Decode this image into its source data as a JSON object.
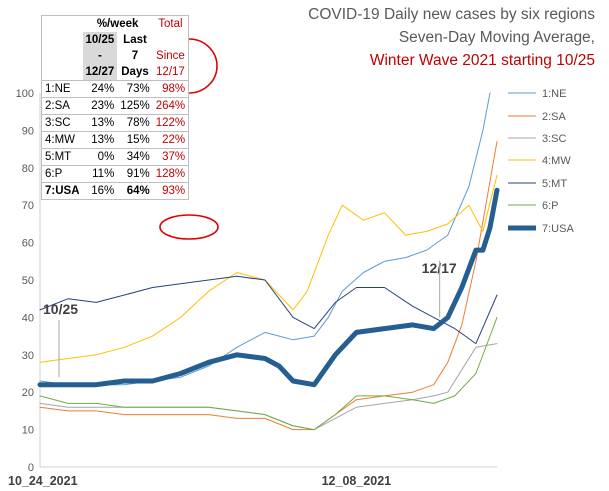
{
  "title": {
    "line1": "COVID-19 Daily new cases by six regions",
    "line2": "Seven-Day Moving Average,",
    "line3": "Winter Wave 2021 starting 10/25"
  },
  "table": {
    "header_pct_week": "%/week",
    "header_total": "Total",
    "col1_lines": [
      "10/25",
      "-",
      "12/27"
    ],
    "col2_lines": [
      "Last",
      "7",
      "Days"
    ],
    "col3_lines": [
      "Since",
      "12/17"
    ],
    "rows": [
      {
        "label": "1:NE",
        "c1": "24%",
        "c2": "73%",
        "c3": "98%"
      },
      {
        "label": "2:SA",
        "c1": "23%",
        "c2": "125%",
        "c3": "264%"
      },
      {
        "label": "3:SC",
        "c1": "13%",
        "c2": "78%",
        "c3": "122%"
      },
      {
        "label": "4:MW",
        "c1": "13%",
        "c2": "15%",
        "c3": "22%"
      },
      {
        "label": "5:MT",
        "c1": "0%",
        "c2": "34%",
        "c3": "37%"
      },
      {
        "label": "6:P",
        "c1": "11%",
        "c2": "91%",
        "c3": "128%"
      },
      {
        "label": "7:USA",
        "c1": "16%",
        "c2": "64%",
        "c3": "93%"
      }
    ]
  },
  "chart_data": {
    "type": "line",
    "title": "COVID-19 Daily new cases by six regions Seven-Day Moving Average, Winter Wave 2021 starting 10/25",
    "ylim": [
      0,
      100
    ],
    "yticks": [
      "0",
      "10",
      "20",
      "30",
      "40",
      "50",
      "60",
      "70",
      "80",
      "90",
      "100"
    ],
    "xticks": [
      "10_24_2021",
      "12_08_2021"
    ],
    "x_start": "2021-10-24",
    "x_end": "2021-12-28",
    "x_tick_dates": [
      "2021-10-24",
      "2021-12-08"
    ],
    "grid": false,
    "legend_position": "right",
    "annotations": [
      {
        "text": "10/25",
        "date": "2021-10-25",
        "y": 42
      },
      {
        "text": "12/17",
        "date": "2021-12-17",
        "y": 53
      }
    ],
    "series": [
      {
        "name": "1:NE",
        "color": "#5b9bd5",
        "width": 1,
        "points": [
          [
            "2021-10-24",
            23
          ],
          [
            "2021-10-28",
            22
          ],
          [
            "2021-11-01",
            22
          ],
          [
            "2021-11-05",
            22
          ],
          [
            "2021-11-09",
            23
          ],
          [
            "2021-11-13",
            24
          ],
          [
            "2021-11-17",
            27
          ],
          [
            "2021-11-21",
            32
          ],
          [
            "2021-11-25",
            36
          ],
          [
            "2021-11-29",
            34
          ],
          [
            "2021-12-02",
            35
          ],
          [
            "2021-12-04",
            40
          ],
          [
            "2021-12-06",
            47
          ],
          [
            "2021-12-09",
            52
          ],
          [
            "2021-12-12",
            55
          ],
          [
            "2021-12-15",
            56
          ],
          [
            "2021-12-18",
            58
          ],
          [
            "2021-12-21",
            62
          ],
          [
            "2021-12-24",
            75
          ],
          [
            "2021-12-26",
            90
          ],
          [
            "2021-12-27",
            100
          ]
        ]
      },
      {
        "name": "2:SA",
        "color": "#ed7d31",
        "width": 1,
        "points": [
          [
            "2021-10-24",
            16
          ],
          [
            "2021-10-28",
            15
          ],
          [
            "2021-11-01",
            15
          ],
          [
            "2021-11-05",
            14
          ],
          [
            "2021-11-09",
            14
          ],
          [
            "2021-11-13",
            14
          ],
          [
            "2021-11-17",
            14
          ],
          [
            "2021-11-21",
            13
          ],
          [
            "2021-11-25",
            13
          ],
          [
            "2021-11-29",
            10
          ],
          [
            "2021-12-02",
            10
          ],
          [
            "2021-12-05",
            14
          ],
          [
            "2021-12-08",
            18
          ],
          [
            "2021-12-12",
            19
          ],
          [
            "2021-12-16",
            20
          ],
          [
            "2021-12-19",
            22
          ],
          [
            "2021-12-21",
            28
          ],
          [
            "2021-12-23",
            38
          ],
          [
            "2021-12-25",
            55
          ],
          [
            "2021-12-28",
            87
          ]
        ]
      },
      {
        "name": "3:SC",
        "color": "#a5a5a5",
        "width": 1,
        "points": [
          [
            "2021-10-24",
            17
          ],
          [
            "2021-10-28",
            16
          ],
          [
            "2021-11-01",
            16
          ],
          [
            "2021-11-05",
            16
          ],
          [
            "2021-11-09",
            16
          ],
          [
            "2021-11-13",
            16
          ],
          [
            "2021-11-17",
            16
          ],
          [
            "2021-11-21",
            15
          ],
          [
            "2021-11-25",
            14
          ],
          [
            "2021-11-29",
            11
          ],
          [
            "2021-12-02",
            10
          ],
          [
            "2021-12-05",
            13
          ],
          [
            "2021-12-08",
            16
          ],
          [
            "2021-12-12",
            17
          ],
          [
            "2021-12-16",
            18
          ],
          [
            "2021-12-19",
            19
          ],
          [
            "2021-12-21",
            20
          ],
          [
            "2021-12-23",
            26
          ],
          [
            "2021-12-25",
            32
          ],
          [
            "2021-12-28",
            33
          ]
        ]
      },
      {
        "name": "4:MW",
        "color": "#ffc000",
        "width": 1,
        "points": [
          [
            "2021-10-24",
            28
          ],
          [
            "2021-10-28",
            29
          ],
          [
            "2021-11-01",
            30
          ],
          [
            "2021-11-05",
            32
          ],
          [
            "2021-11-09",
            35
          ],
          [
            "2021-11-13",
            40
          ],
          [
            "2021-11-17",
            47
          ],
          [
            "2021-11-21",
            52
          ],
          [
            "2021-11-25",
            50
          ],
          [
            "2021-11-29",
            42
          ],
          [
            "2021-12-01",
            47
          ],
          [
            "2021-12-04",
            62
          ],
          [
            "2021-12-06",
            70
          ],
          [
            "2021-12-09",
            66
          ],
          [
            "2021-12-12",
            68
          ],
          [
            "2021-12-15",
            62
          ],
          [
            "2021-12-18",
            63
          ],
          [
            "2021-12-21",
            65
          ],
          [
            "2021-12-24",
            70
          ],
          [
            "2021-12-26",
            63
          ],
          [
            "2021-12-28",
            78
          ]
        ]
      },
      {
        "name": "5:MT",
        "color": "#264478",
        "width": 1,
        "points": [
          [
            "2021-10-24",
            42
          ],
          [
            "2021-10-28",
            45
          ],
          [
            "2021-11-01",
            44
          ],
          [
            "2021-11-05",
            46
          ],
          [
            "2021-11-09",
            48
          ],
          [
            "2021-11-13",
            49
          ],
          [
            "2021-11-17",
            50
          ],
          [
            "2021-11-21",
            51
          ],
          [
            "2021-11-25",
            50
          ],
          [
            "2021-11-29",
            40
          ],
          [
            "2021-12-02",
            37
          ],
          [
            "2021-12-05",
            44
          ],
          [
            "2021-12-08",
            48
          ],
          [
            "2021-12-12",
            48
          ],
          [
            "2021-12-16",
            43
          ],
          [
            "2021-12-19",
            40
          ],
          [
            "2021-12-22",
            37
          ],
          [
            "2021-12-25",
            33
          ],
          [
            "2021-12-28",
            46
          ]
        ]
      },
      {
        "name": "6:P",
        "color": "#70ad47",
        "width": 1,
        "points": [
          [
            "2021-10-24",
            19
          ],
          [
            "2021-10-28",
            17
          ],
          [
            "2021-11-01",
            17
          ],
          [
            "2021-11-05",
            16
          ],
          [
            "2021-11-09",
            16
          ],
          [
            "2021-11-13",
            16
          ],
          [
            "2021-11-17",
            16
          ],
          [
            "2021-11-21",
            15
          ],
          [
            "2021-11-25",
            14
          ],
          [
            "2021-11-29",
            11
          ],
          [
            "2021-12-02",
            10
          ],
          [
            "2021-12-05",
            14
          ],
          [
            "2021-12-08",
            19
          ],
          [
            "2021-12-12",
            19
          ],
          [
            "2021-12-16",
            18
          ],
          [
            "2021-12-19",
            17
          ],
          [
            "2021-12-22",
            19
          ],
          [
            "2021-12-25",
            25
          ],
          [
            "2021-12-28",
            40
          ]
        ]
      },
      {
        "name": "7:USA",
        "color": "#255e91",
        "width": 5,
        "points": [
          [
            "2021-10-24",
            22
          ],
          [
            "2021-10-28",
            22
          ],
          [
            "2021-11-01",
            22
          ],
          [
            "2021-11-05",
            23
          ],
          [
            "2021-11-09",
            23
          ],
          [
            "2021-11-13",
            25
          ],
          [
            "2021-11-17",
            28
          ],
          [
            "2021-11-21",
            30
          ],
          [
            "2021-11-25",
            29
          ],
          [
            "2021-11-27",
            27
          ],
          [
            "2021-11-29",
            23
          ],
          [
            "2021-12-02",
            22
          ],
          [
            "2021-12-05",
            30
          ],
          [
            "2021-12-08",
            36
          ],
          [
            "2021-12-12",
            37
          ],
          [
            "2021-12-16",
            38
          ],
          [
            "2021-12-19",
            37
          ],
          [
            "2021-12-21",
            40
          ],
          [
            "2021-12-23",
            48
          ],
          [
            "2021-12-25",
            58
          ],
          [
            "2021-12-26",
            58
          ],
          [
            "2021-12-27",
            64
          ],
          [
            "2021-12-28",
            74
          ]
        ]
      }
    ]
  }
}
